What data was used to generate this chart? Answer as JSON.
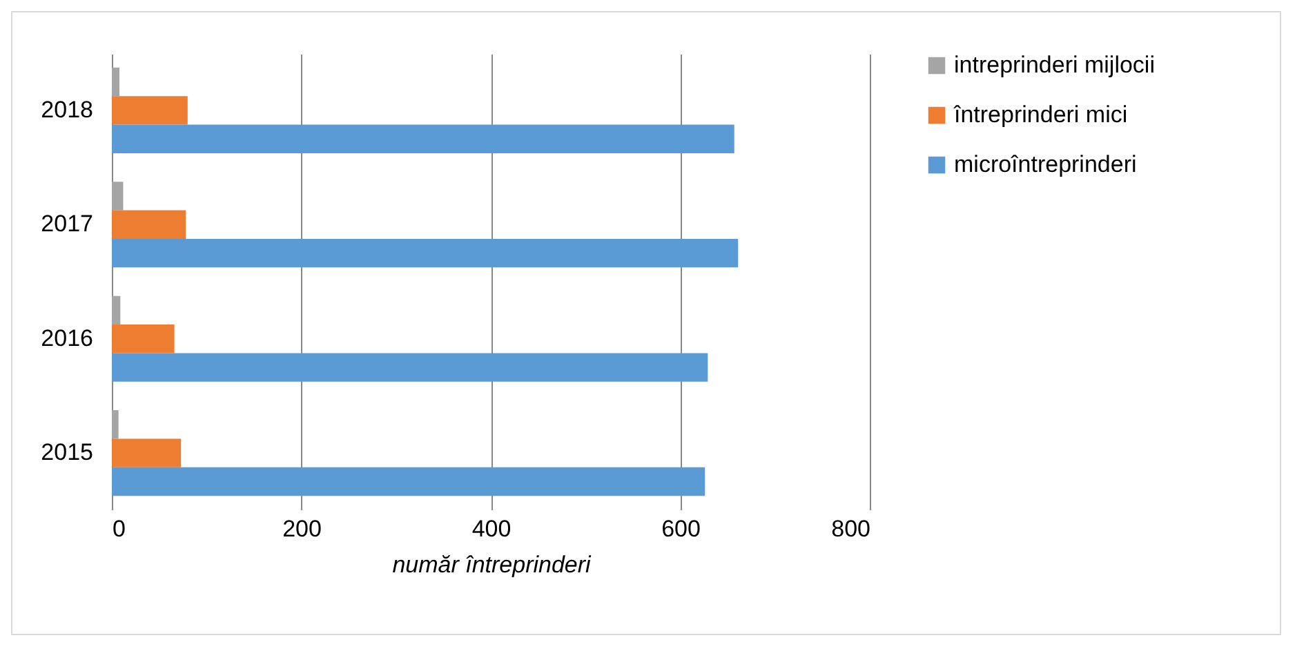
{
  "chart_data": {
    "type": "bar",
    "orientation": "horizontal",
    "xlabel": "număr întreprinderi",
    "categories": [
      "2018",
      "2017",
      "2016",
      "2015"
    ],
    "series": [
      {
        "name": "intreprinderi mijlocii",
        "color": "#a5a5a5",
        "values": [
          8,
          12,
          9,
          7
        ]
      },
      {
        "name": "întreprinderi mici",
        "color": "#ed7d31",
        "values": [
          80,
          78,
          66,
          73
        ]
      },
      {
        "name": "microîntreprinderi",
        "color": "#5b9bd5",
        "values": [
          657,
          661,
          629,
          626
        ]
      }
    ],
    "xlim": [
      0,
      800
    ],
    "xticks": [
      0,
      200,
      400,
      600,
      800
    ],
    "grid": "x",
    "legend": "right"
  }
}
